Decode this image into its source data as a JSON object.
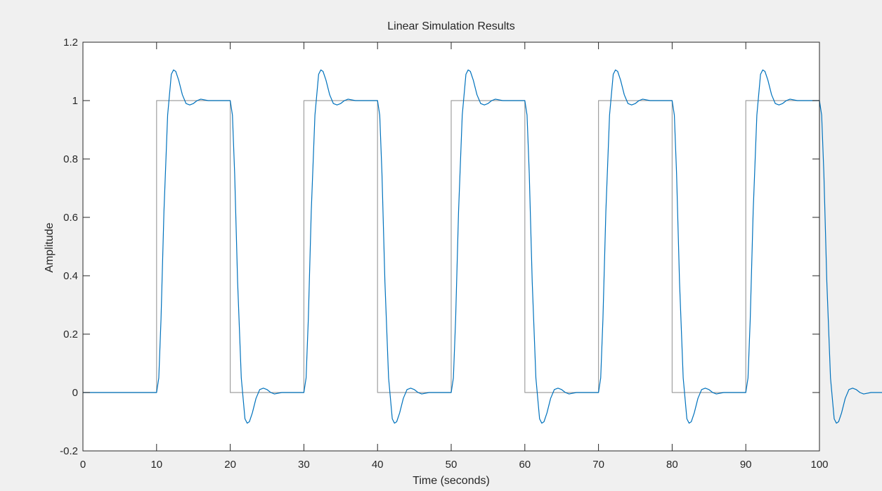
{
  "colors": {
    "figure_background": "#f0f0f0",
    "axes_background": "#ffffff",
    "axes_color": "#262626",
    "input_line": "#a0a0a0",
    "response_line": "#0072bd"
  },
  "chart_data": {
    "type": "line",
    "title": "Linear Simulation Results",
    "xlabel": "Time (seconds)",
    "ylabel": "Amplitude",
    "xlim": [
      0,
      100
    ],
    "ylim": [
      -0.2,
      1.2
    ],
    "xticks": [
      0,
      10,
      20,
      30,
      40,
      50,
      60,
      70,
      80,
      90,
      100
    ],
    "yticks": [
      -0.2,
      0,
      0.2,
      0.4,
      0.6,
      0.8,
      1,
      1.2
    ],
    "xtick_labels": [
      "0",
      "10",
      "20",
      "30",
      "40",
      "50",
      "60",
      "70",
      "80",
      "90",
      "100"
    ],
    "ytick_labels": [
      "-0.2",
      "0",
      "0.2",
      "0.4",
      "0.6",
      "0.8",
      "1",
      "1.2"
    ],
    "grid": false,
    "series": [
      {
        "color": "#a0a0a0",
        "x": [
          0,
          10,
          10,
          20,
          20,
          30,
          30,
          40,
          40,
          50,
          50,
          60,
          60,
          70,
          70,
          80,
          80,
          90,
          90,
          100,
          100
        ],
        "y": [
          0,
          0,
          1,
          1,
          0,
          0,
          1,
          1,
          0,
          0,
          1,
          1,
          0,
          0,
          1,
          1,
          0,
          0,
          1,
          1,
          0
        ]
      },
      {
        "color": "#0072bd",
        "x": [
          0,
          10,
          10.3,
          10.6,
          11,
          11.5,
          12,
          12.3,
          12.6,
          13,
          13.5,
          14,
          14.5,
          15,
          15.5,
          16,
          17,
          18,
          19,
          20,
          20.3,
          20.6,
          21,
          21.5,
          22,
          22.3,
          22.6,
          23,
          23.5,
          24,
          24.5,
          25,
          25.5,
          26,
          27,
          28,
          29,
          30
        ],
        "y": [
          0,
          0,
          0.05,
          0.25,
          0.62,
          0.95,
          1.09,
          1.105,
          1.1,
          1.07,
          1.02,
          0.99,
          0.985,
          0.99,
          1.0,
          1.005,
          1.0,
          1.0,
          1.0,
          1.0,
          0.95,
          0.75,
          0.38,
          0.05,
          -0.09,
          -0.105,
          -0.1,
          -0.07,
          -0.02,
          0.01,
          0.015,
          0.01,
          0.0,
          -0.005,
          0.0,
          0.0,
          0.0,
          0.0
        ],
        "period": 20,
        "repeats": 5
      }
    ]
  }
}
